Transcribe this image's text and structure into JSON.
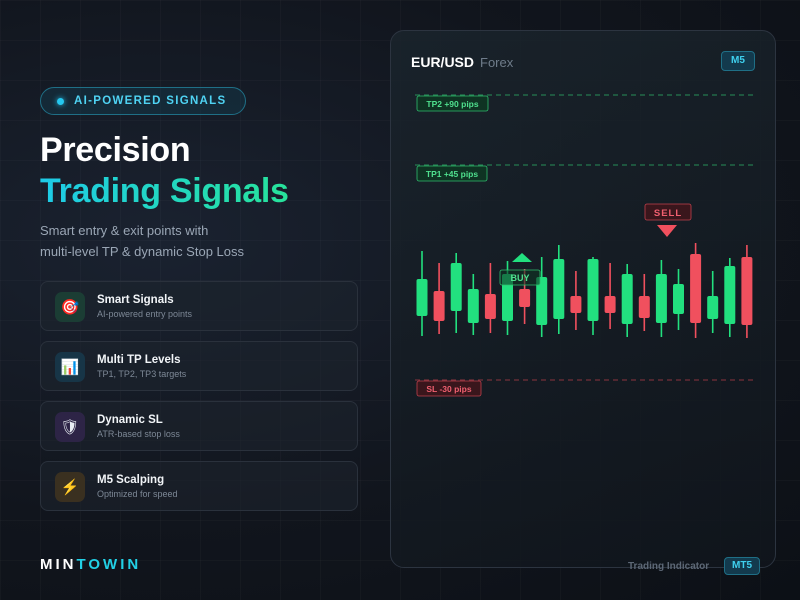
{
  "badge": "AI-POWERED SIGNALS",
  "headline_line1": "Precision",
  "headline_line2": "Trading Signals",
  "subtitle_line1": "Smart entry & exit points with",
  "subtitle_line2": "multi-level TP & dynamic Stop Loss",
  "features": [
    {
      "title": "Smart Signals",
      "desc": "AI-powered entry points",
      "icon": "target-icon",
      "glyph": "🎯",
      "bg": "#1b3d34"
    },
    {
      "title": "Multi TP Levels",
      "desc": "TP1, TP2, TP3 targets",
      "icon": "bar-chart-icon",
      "glyph": "📊",
      "bg": "#173547"
    },
    {
      "title": "Dynamic SL",
      "desc": "ATR-based stop loss",
      "icon": "shield-icon",
      "glyph": "🛡",
      "bg": "#2d2446"
    },
    {
      "title": "M5 Scalping",
      "desc": "Optimized for speed",
      "icon": "lightning-icon",
      "glyph": "⚡",
      "bg": "#3a3020"
    }
  ],
  "brand": {
    "part1": "MIN",
    "part2": "TOWIN"
  },
  "chart": {
    "pair": "EUR/USD",
    "market": "Forex",
    "timeframe": "M5",
    "tp2_label": "TP2 +90 pips",
    "tp1_label": "TP1 +45 pips",
    "sl_label": "SL -30 pips",
    "buy_label": "BUY",
    "sell_label": "SELL"
  },
  "footer": {
    "label": "Trading Indicator",
    "platform": "MT5"
  },
  "colors": {
    "bull": "#22e07f",
    "bear": "#f0505e",
    "accent": "#22d0e6"
  },
  "candles": [
    {
      "dir": "up"
    },
    {
      "dir": "down"
    },
    {
      "dir": "up"
    },
    {
      "dir": "up"
    },
    {
      "dir": "down"
    },
    {
      "dir": "up"
    },
    {
      "dir": "down"
    },
    {
      "dir": "up"
    },
    {
      "dir": "up"
    },
    {
      "dir": "down"
    },
    {
      "dir": "up"
    },
    {
      "dir": "down"
    },
    {
      "dir": "up"
    },
    {
      "dir": "down"
    },
    {
      "dir": "up"
    },
    {
      "dir": "up"
    },
    {
      "dir": "down"
    },
    {
      "dir": "up"
    },
    {
      "dir": "up"
    },
    {
      "dir": "down"
    }
  ]
}
